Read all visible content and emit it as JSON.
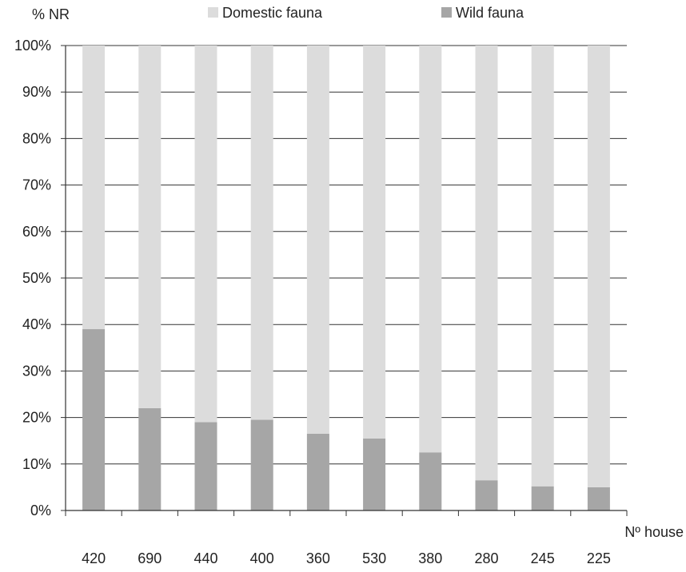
{
  "chart_data": {
    "type": "bar",
    "stacked": true,
    "ylabel": "% NR",
    "xlabel": "Nº house",
    "categories": [
      "420",
      "690",
      "440",
      "400",
      "360",
      "530",
      "380",
      "280",
      "245",
      "225"
    ],
    "series": [
      {
        "name": "Domestic fauna",
        "color": "#dcdcdc",
        "values": [
          61,
          78,
          81,
          80.5,
          83.5,
          84.5,
          87.5,
          93.5,
          94.8,
          95
        ]
      },
      {
        "name": "Wild fauna",
        "color": "#a6a6a6",
        "values": [
          39,
          22,
          19,
          19.5,
          16.5,
          15.5,
          12.5,
          6.5,
          5.2,
          5
        ]
      }
    ],
    "ylim": [
      0,
      100
    ],
    "yticks": [
      "0%",
      "10%",
      "20%",
      "30%",
      "40%",
      "50%",
      "60%",
      "70%",
      "80%",
      "90%",
      "100%"
    ],
    "grid": "horizontal",
    "legend_position": "top"
  }
}
